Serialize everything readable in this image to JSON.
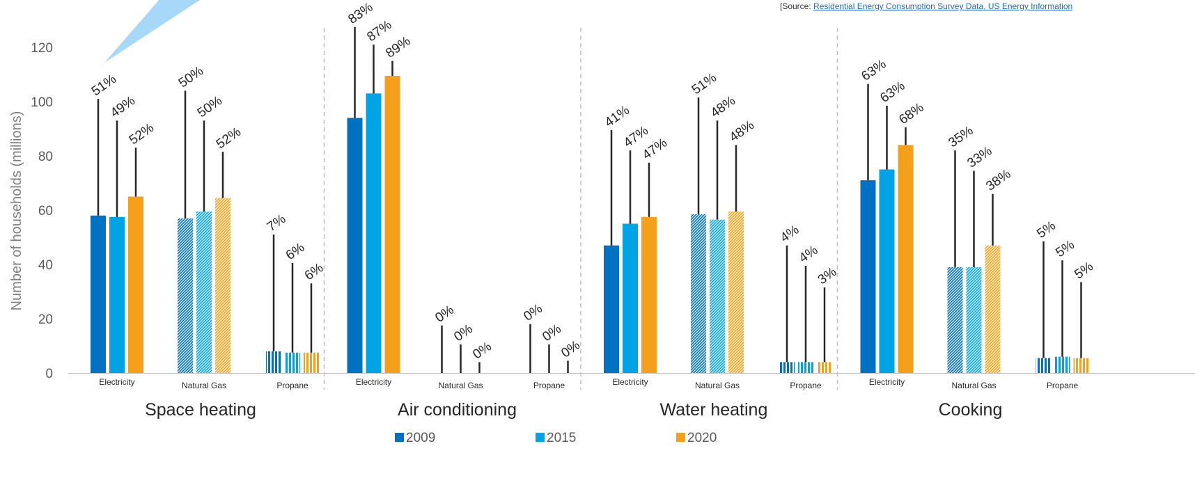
{
  "source": {
    "prefix": "[Source: ",
    "link_text": "Residential Energy Consumption Survey Data. US Energy Information"
  },
  "chart_data": {
    "type": "bar",
    "ylabel": "Number of households (millions)",
    "ylim": [
      0,
      130
    ],
    "yticks": [
      0,
      20,
      40,
      60,
      80,
      100,
      120
    ],
    "grid": false,
    "legend_position": "bottom",
    "series": [
      {
        "name": "2009",
        "color": "#0070c0"
      },
      {
        "name": "2015",
        "color": "#00a3e6"
      },
      {
        "name": "2020",
        "color": "#f5a01a"
      }
    ],
    "groups": [
      {
        "name": "Space heating",
        "fuels": [
          {
            "name": "Electricity",
            "pattern": "solid",
            "values": [
              58,
              57.5,
              65
            ],
            "labels": [
              "51%",
              "49%",
              "52%"
            ],
            "line_tops": [
              101,
              93,
              83
            ]
          },
          {
            "name": "Natural Gas",
            "pattern": "dots",
            "values": [
              57,
              59.5,
              64.5
            ],
            "labels": [
              "50%",
              "50%",
              "52%"
            ],
            "line_tops": [
              104,
              93,
              81.5
            ]
          },
          {
            "name": "Propane",
            "pattern": "stripes",
            "values": [
              8,
              7.5,
              7.5
            ],
            "labels": [
              "7%",
              "6%",
              "6%"
            ],
            "line_tops": [
              51,
              40.5,
              33
            ]
          }
        ]
      },
      {
        "name": "Air conditioning",
        "fuels": [
          {
            "name": "Electricity",
            "pattern": "solid",
            "values": [
              94,
              103,
              109.5
            ],
            "labels": [
              "83%",
              "87%",
              "89%"
            ],
            "line_tops": [
              127.5,
              121,
              115
            ]
          },
          {
            "name": "Natural Gas",
            "pattern": "dots",
            "values": [
              0,
              0,
              0
            ],
            "labels": [
              "0%",
              "0%",
              "0%"
            ],
            "line_tops": [
              17.5,
              10.5,
              4
            ]
          },
          {
            "name": "Propane",
            "pattern": "stripes",
            "values": [
              0,
              0,
              0
            ],
            "labels": [
              "0%",
              "0%",
              "0%"
            ],
            "line_tops": [
              18,
              10.5,
              4.5
            ]
          }
        ]
      },
      {
        "name": "Water heating",
        "fuels": [
          {
            "name": "Electricity",
            "pattern": "solid",
            "values": [
              47,
              55,
              57.5
            ],
            "labels": [
              "41%",
              "47%",
              "47%"
            ],
            "line_tops": [
              89.5,
              82,
              77.5
            ]
          },
          {
            "name": "Natural Gas",
            "pattern": "dots",
            "values": [
              58.5,
              56.5,
              59.5
            ],
            "labels": [
              "51%",
              "48%",
              "48%"
            ],
            "line_tops": [
              101.5,
              93,
              84
            ]
          },
          {
            "name": "Propane",
            "pattern": "stripes",
            "values": [
              4,
              4,
              4
            ],
            "labels": [
              "4%",
              "4%",
              "3%"
            ],
            "line_tops": [
              47,
              39.5,
              31.5
            ]
          }
        ]
      },
      {
        "name": "Cooking",
        "fuels": [
          {
            "name": "Electricity",
            "pattern": "solid",
            "values": [
              71,
              75,
              84
            ],
            "labels": [
              "63%",
              "63%",
              "68%"
            ],
            "line_tops": [
              106.5,
              98.5,
              90.5
            ]
          },
          {
            "name": "Natural Gas",
            "pattern": "dots",
            "values": [
              39,
              39,
              47
            ],
            "labels": [
              "35%",
              "33%",
              "38%"
            ],
            "line_tops": [
              82,
              74.5,
              66
            ]
          },
          {
            "name": "Propane",
            "pattern": "stripes",
            "values": [
              5.5,
              6,
              5.5
            ],
            "labels": [
              "5%",
              "5%",
              "5%"
            ],
            "line_tops": [
              48.5,
              41.5,
              33.5
            ]
          }
        ]
      }
    ]
  }
}
